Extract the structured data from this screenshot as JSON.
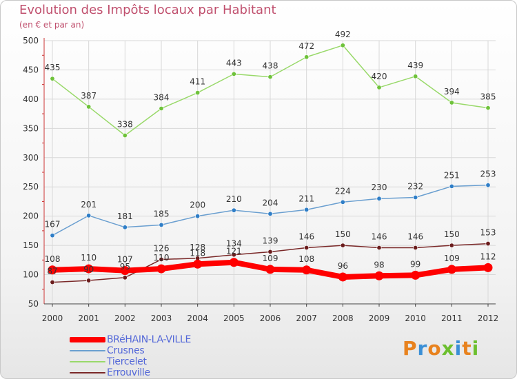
{
  "title": "Evolution des Impôts locaux par Habitant",
  "subtitle": "(en € et par an)",
  "logo_text": "Proxiti",
  "logo_colors": [
    "#e8821e",
    "#3a8fd6",
    "#e8821e",
    "#6cbf2e",
    "#3a8fd6",
    "#e8821e",
    "#6cbf2e"
  ],
  "colors": {
    "title": "#c0506e",
    "axis_line": "#cc3333",
    "grid": "#d8d8d8",
    "legend_text": "#5468d8"
  },
  "chart_data": {
    "type": "line",
    "x": [
      "2000",
      "2001",
      "2002",
      "2003",
      "2004",
      "2005",
      "2006",
      "2007",
      "2008",
      "2009",
      "2010",
      "2011",
      "2012"
    ],
    "ylim": [
      50,
      500
    ],
    "yticks": [
      50,
      100,
      150,
      200,
      250,
      300,
      350,
      400,
      450,
      500
    ],
    "grid": true,
    "legend_position": "bottom-left",
    "series": [
      {
        "name": "BRéHAIN-LA-VILLE",
        "color": "#ff0000",
        "marker_color": "#ff0000",
        "values": [
          108,
          110,
          107,
          110,
          118,
          121,
          109,
          108,
          96,
          98,
          99,
          109,
          112
        ],
        "labels": [
          "108",
          "110",
          "107",
          "110",
          "118",
          "121",
          "109",
          "108",
          "96",
          "98",
          "99",
          "109",
          "112"
        ]
      },
      {
        "name": "Crusnes",
        "color": "#6a9fd0",
        "marker_color": "#2f7ec7",
        "values": [
          167,
          201,
          181,
          185,
          200,
          210,
          204,
          211,
          224,
          230,
          232,
          251,
          253
        ],
        "labels": [
          "167",
          "201",
          "181",
          "185",
          "200",
          "210",
          "204",
          "211",
          "224",
          "230",
          "232",
          "251",
          "253"
        ]
      },
      {
        "name": "Tiercelet",
        "color": "#99d96a",
        "marker_color": "#6ec23a",
        "values": [
          435,
          387,
          338,
          384,
          411,
          443,
          438,
          472,
          492,
          420,
          439,
          394,
          385
        ],
        "labels": [
          "435",
          "387",
          "338",
          "384",
          "411",
          "443",
          "438",
          "472",
          "492",
          "420",
          "439",
          "394",
          "385"
        ]
      },
      {
        "name": "Errouville",
        "color": "#7a2828",
        "marker_color": "#6a1c1c",
        "values": [
          87,
          90,
          95,
          126,
          128,
          134,
          139,
          146,
          150,
          146,
          146,
          150,
          153
        ],
        "labels": [
          "87",
          "90",
          "95",
          "126",
          "128",
          "134",
          "139",
          "146",
          "150",
          "146",
          "146",
          "150",
          "153"
        ]
      }
    ]
  }
}
